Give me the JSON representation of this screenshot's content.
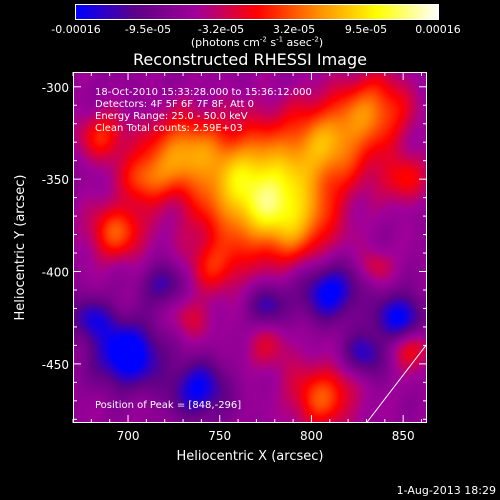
{
  "colorbar": {
    "ticks": [
      "-0.00016",
      "-9.5e-05",
      "-3.2e-05",
      "3.2e-05",
      "9.5e-05",
      "0.00016"
    ],
    "units_prefix": "(photons cm",
    "units_exp1": "-2",
    "units_mid": " s",
    "units_exp2": "-1",
    "units_mid2": " asec",
    "units_exp3": "-2",
    "units_suffix": ")",
    "colors": [
      "#0000ff",
      "#5f0087",
      "#a0009a",
      "#ff0000",
      "#ff8c00",
      "#ffff00",
      "#ffffff"
    ]
  },
  "chart_data": {
    "type": "heatmap",
    "title": "Reconstructed RHESSI Image",
    "xlabel": "Heliocentric X (arcsec)",
    "ylabel": "Heliocentric Y (arcsec)",
    "xlim": [
      670,
      863
    ],
    "ylim": [
      -482,
      -292
    ],
    "x_ticks": [
      700,
      750,
      800,
      850
    ],
    "y_ticks": [
      -300,
      -350,
      -400,
      -450
    ],
    "info_lines": [
      "18-Oct-2010 15:33:28.000 to 15:36:12.000",
      "Detectors: 4F 5F 6F 7F 8F, Att 0",
      "Energy Range: 25.0 - 50.0 keV",
      "Clean    Total counts: 2.59E+03"
    ],
    "peak_label": "Position of Peak = [848,-296]",
    "limb_line": [
      [
        863,
        -438
      ],
      [
        829,
        -482
      ]
    ]
  },
  "footer": {
    "date": "1-Aug-2013 18:29"
  }
}
